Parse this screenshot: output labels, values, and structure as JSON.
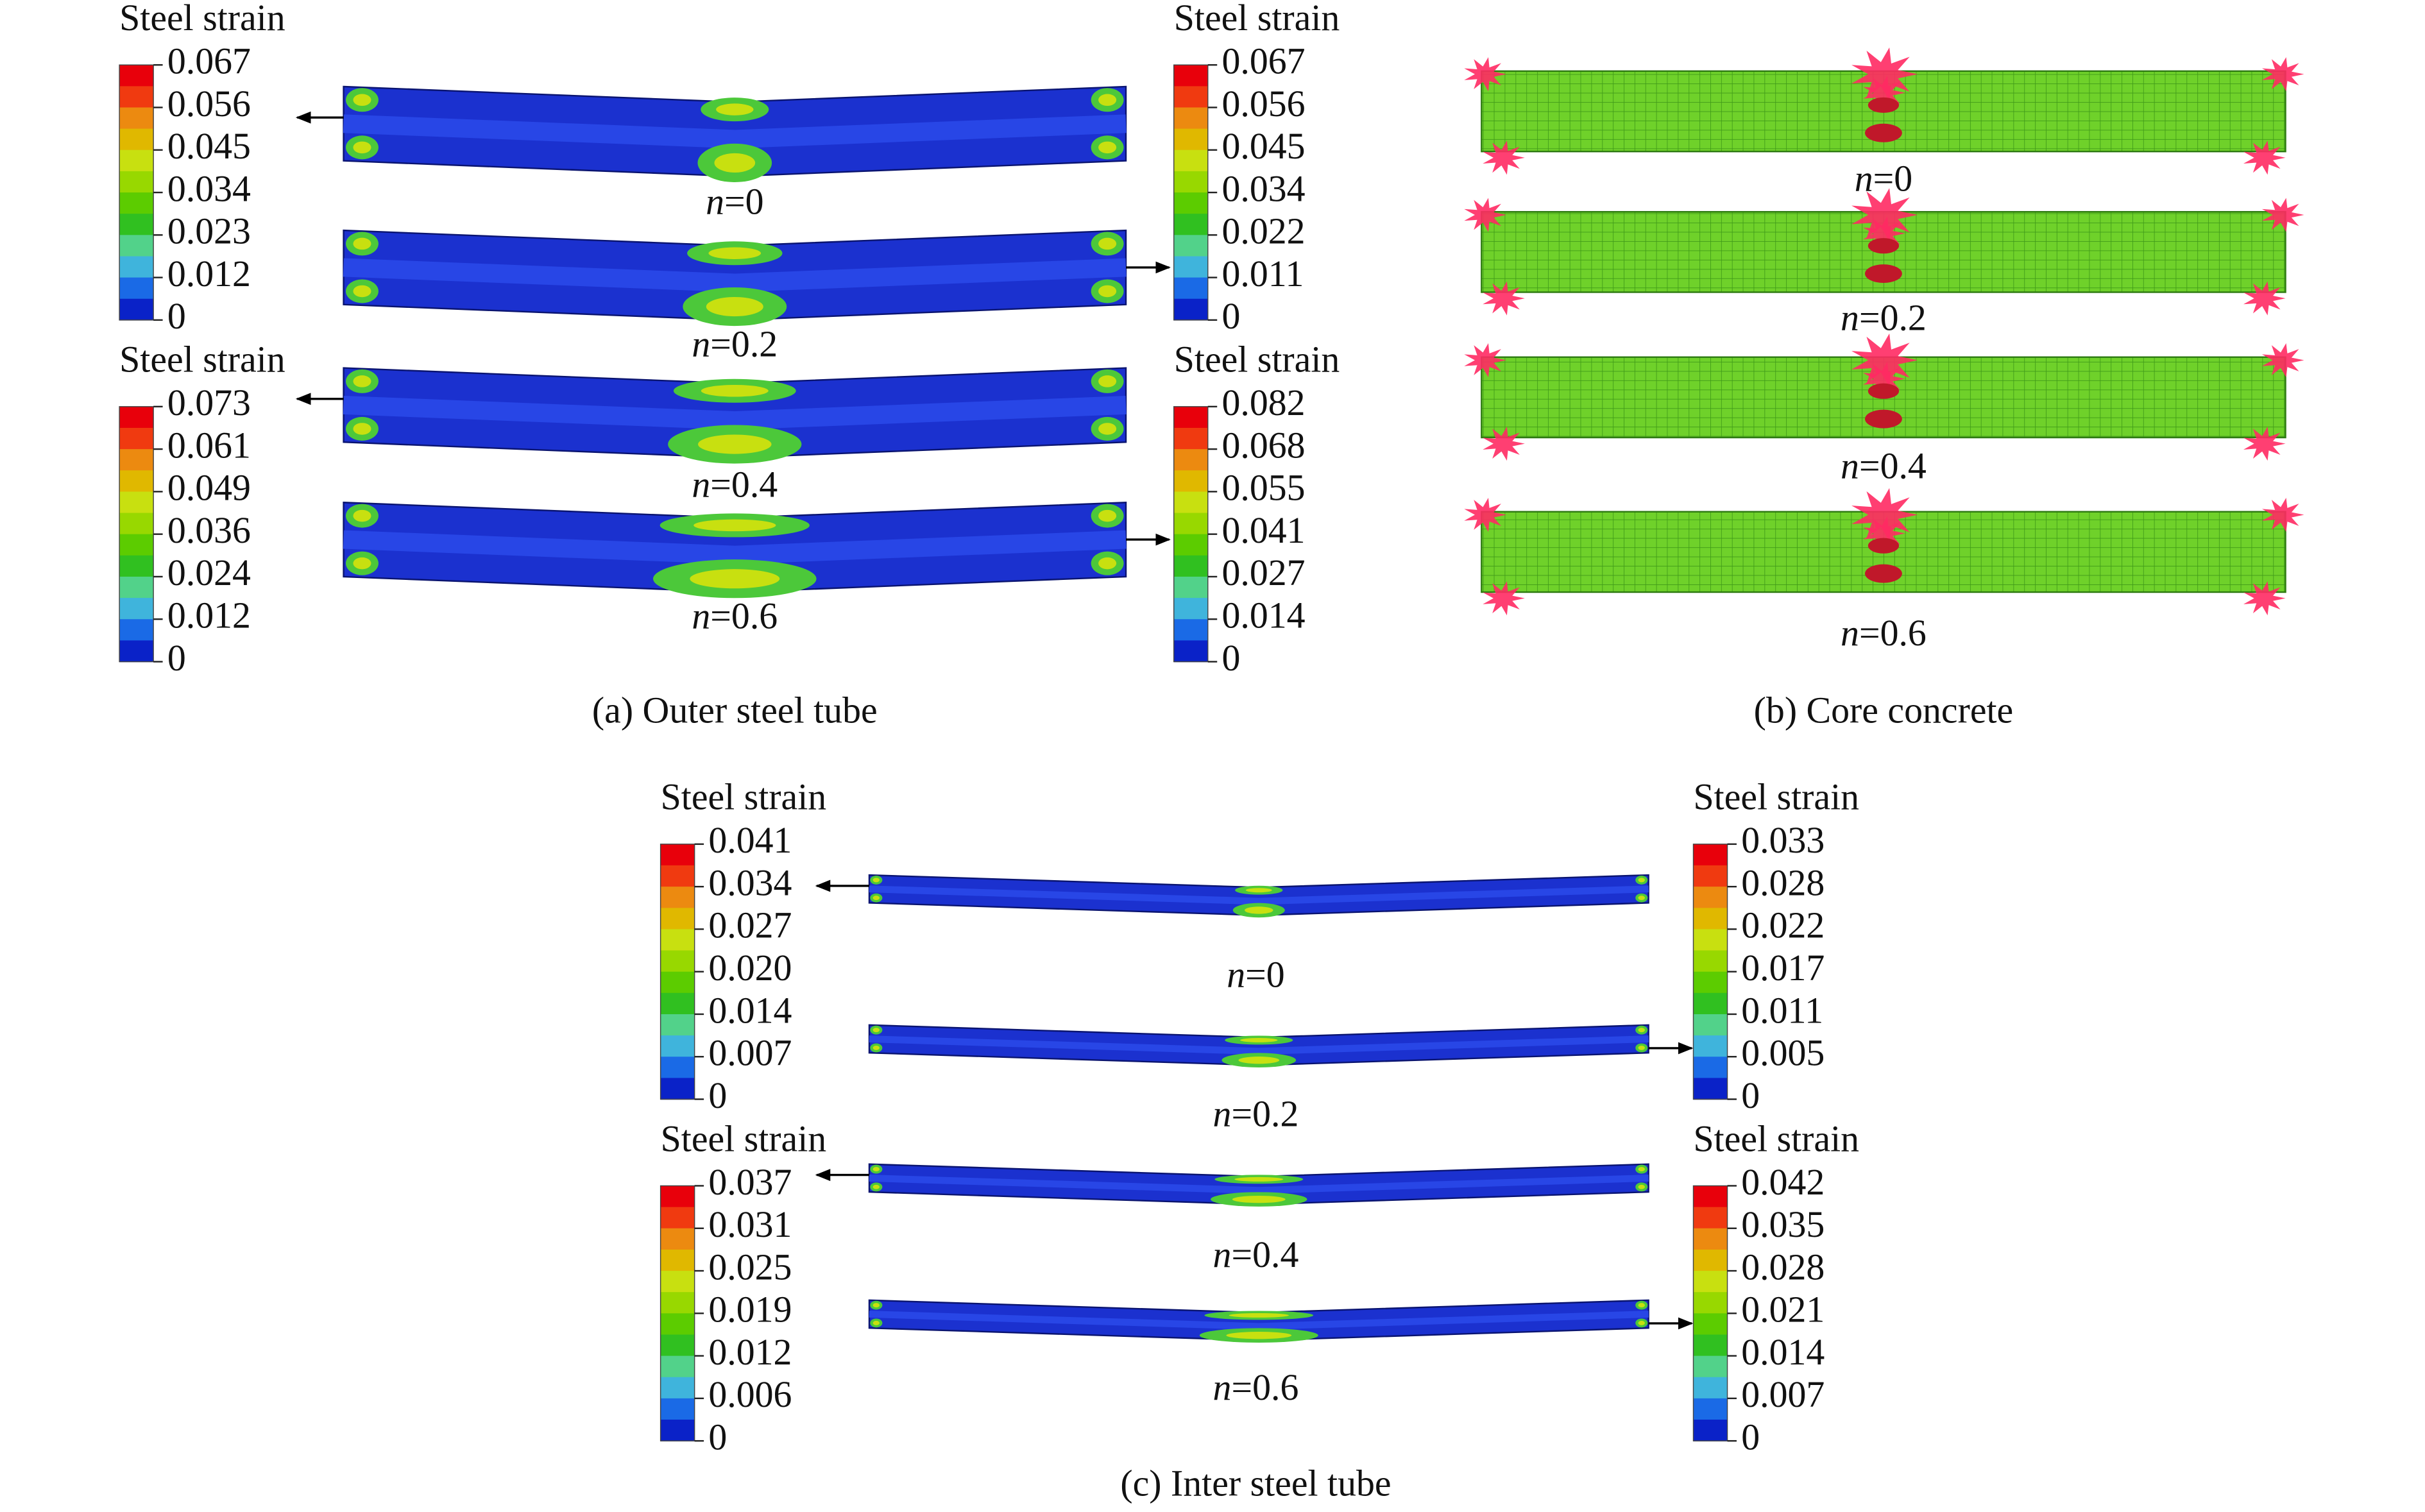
{
  "panels": [
    {
      "caption": "(a) Outer steel tube",
      "legends": [
        {
          "title": "Steel strain",
          "ticks": [
            "0.067",
            "0.056",
            "0.045",
            "0.034",
            "0.023",
            "0.012",
            "0"
          ]
        },
        {
          "title": "Steel strain",
          "ticks": [
            "0.067",
            "0.056",
            "0.045",
            "0.034",
            "0.022",
            "0.011",
            "0"
          ]
        },
        {
          "title": "Steel strain",
          "ticks": [
            "0.073",
            "0.061",
            "0.049",
            "0.036",
            "0.024",
            "0.012",
            "0"
          ]
        },
        {
          "title": "Steel strain",
          "ticks": [
            "0.082",
            "0.068",
            "0.055",
            "0.041",
            "0.027",
            "0.014",
            "0"
          ]
        }
      ],
      "beams": [
        {
          "symbol": "n",
          "value": "=0"
        },
        {
          "symbol": "n",
          "value": "=0.2"
        },
        {
          "symbol": "n",
          "value": "=0.4"
        },
        {
          "symbol": "n",
          "value": "=0.6"
        }
      ]
    },
    {
      "caption": "(b) Core concrete",
      "legends": [],
      "beams": [
        {
          "symbol": "n",
          "value": "=0"
        },
        {
          "symbol": "n",
          "value": "=0.2"
        },
        {
          "symbol": "n",
          "value": "=0.4"
        },
        {
          "symbol": "n",
          "value": "=0.6"
        }
      ]
    },
    {
      "caption": "(c) Inter steel tube",
      "legends": [
        {
          "title": "Steel strain",
          "ticks": [
            "0.041",
            "0.034",
            "0.027",
            "0.020",
            "0.014",
            "0.007",
            "0"
          ]
        },
        {
          "title": "Steel strain",
          "ticks": [
            "0.033",
            "0.028",
            "0.022",
            "0.017",
            "0.011",
            "0.005",
            "0"
          ]
        },
        {
          "title": "Steel strain",
          "ticks": [
            "0.037",
            "0.031",
            "0.025",
            "0.019",
            "0.012",
            "0.006",
            "0"
          ]
        },
        {
          "title": "Steel strain",
          "ticks": [
            "0.042",
            "0.035",
            "0.028",
            "0.021",
            "0.014",
            "0.007",
            "0"
          ]
        }
      ],
      "beams": [
        {
          "symbol": "n",
          "value": "=0"
        },
        {
          "symbol": "n",
          "value": "=0.2"
        },
        {
          "symbol": "n",
          "value": "=0.4"
        },
        {
          "symbol": "n",
          "value": "=0.6"
        }
      ]
    }
  ]
}
